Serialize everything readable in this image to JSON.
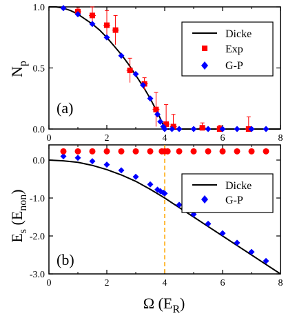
{
  "chart_data": [
    {
      "panel_label": "(a)",
      "type": "line+scatter",
      "ylabel_base": "N",
      "ylabel_sub": "p",
      "xlim": [
        0,
        8
      ],
      "ylim": [
        0,
        1
      ],
      "xticks": [
        "0",
        "2",
        "4",
        "6",
        "8"
      ],
      "yticks": [
        "0.0",
        "0.5",
        "1.0"
      ],
      "legend_position": "top-right",
      "legend": [
        {
          "label": "Dicke",
          "kind": "line",
          "color": "#000000"
        },
        {
          "label": "Exp",
          "kind": "square",
          "color": "#ff0000"
        },
        {
          "label": "G-P",
          "kind": "diamond",
          "color": "#0000ff"
        }
      ],
      "series": [
        {
          "name": "Dicke",
          "kind": "line",
          "color": "#000000",
          "x": [
            0,
            0.25,
            0.5,
            0.75,
            1.0,
            1.25,
            1.5,
            1.75,
            2.0,
            2.25,
            2.5,
            2.75,
            3.0,
            3.25,
            3.5,
            3.65,
            3.8,
            3.9,
            3.97,
            4.0,
            8.0
          ],
          "y": [
            1.0,
            1.0,
            0.99,
            0.97,
            0.94,
            0.9,
            0.86,
            0.81,
            0.75,
            0.68,
            0.61,
            0.53,
            0.44,
            0.35,
            0.25,
            0.18,
            0.11,
            0.06,
            0.02,
            0.0,
            0.0
          ]
        },
        {
          "name": "Exp",
          "kind": "square",
          "color": "#ff0000",
          "x": [
            1.0,
            1.5,
            2.0,
            2.3,
            2.8,
            3.3,
            3.7,
            4.05,
            4.3,
            5.3,
            5.9,
            6.9
          ],
          "y": [
            0.96,
            0.93,
            0.85,
            0.81,
            0.48,
            0.37,
            0.16,
            0.04,
            0.02,
            0.01,
            0.0,
            0.0
          ],
          "err": [
            0.03,
            0.07,
            0.12,
            0.12,
            0.1,
            0.05,
            0.14,
            0.16,
            0.1,
            0.04,
            0.03,
            0.1
          ]
        },
        {
          "name": "G-P",
          "kind": "diamond",
          "color": "#0000ff",
          "x": [
            0.5,
            1.0,
            1.5,
            2.0,
            2.5,
            3.0,
            3.25,
            3.5,
            3.75,
            3.85,
            3.95,
            4.0,
            4.25,
            4.5,
            5.0,
            5.5,
            6.0,
            6.5,
            7.0,
            7.5
          ],
          "y": [
            0.99,
            0.94,
            0.86,
            0.75,
            0.6,
            0.45,
            0.36,
            0.25,
            0.12,
            0.06,
            0.02,
            0.0,
            0.0,
            0.0,
            0.0,
            0.0,
            0.0,
            0.0,
            0.0,
            0.0
          ]
        }
      ]
    },
    {
      "panel_label": "(b)",
      "type": "line+scatter",
      "ylabel_base": "E",
      "ylabel_sub": "s",
      "ylabel_paren_base": "E",
      "ylabel_paren_sub": "non",
      "xlabel_base": "Ω (E",
      "xlabel_sub": "R",
      "xlabel_close": ")",
      "xlim": [
        0,
        8
      ],
      "ylim": [
        -3.0,
        0.4
      ],
      "xticks": [
        "0",
        "2",
        "4",
        "6",
        "8"
      ],
      "yticks": [
        "0.0",
        "-1.0",
        "-2.0",
        "-3.0"
      ],
      "ytick_values": [
        0,
        -1,
        -2,
        -3
      ],
      "vline_x": 4,
      "vline_color": "#ffa500",
      "legend_position": "right",
      "legend": [
        {
          "label": "Dicke",
          "kind": "line",
          "color": "#000000"
        },
        {
          "label": "G-P",
          "kind": "diamond",
          "color": "#0000ff"
        }
      ],
      "series": [
        {
          "name": "Dicke",
          "kind": "line",
          "color": "#000000",
          "x": [
            0,
            0.5,
            1.0,
            1.5,
            2.0,
            2.5,
            3.0,
            3.5,
            4.0,
            4.5,
            5.0,
            5.5,
            6.0,
            6.5,
            7.0,
            7.5,
            8.0
          ],
          "y": [
            0.0,
            -0.02,
            -0.06,
            -0.14,
            -0.25,
            -0.39,
            -0.56,
            -0.77,
            -1.0,
            -1.25,
            -1.5,
            -1.75,
            -2.0,
            -2.25,
            -2.5,
            -2.75,
            -3.0
          ]
        },
        {
          "name": "G-P",
          "kind": "diamond",
          "color": "#0000ff",
          "x": [
            0.5,
            1.0,
            1.5,
            2.0,
            2.5,
            3.0,
            3.5,
            3.75,
            3.85,
            3.95,
            4.0,
            4.5,
            5.0,
            5.5,
            6.0,
            6.5,
            7.0,
            7.5
          ],
          "y": [
            0.1,
            0.06,
            -0.03,
            -0.12,
            -0.27,
            -0.44,
            -0.64,
            -0.78,
            -0.82,
            -0.86,
            -0.88,
            -1.18,
            -1.43,
            -1.68,
            -1.93,
            -2.18,
            -2.42,
            -2.66
          ]
        },
        {
          "name": "red-dots",
          "kind": "circle",
          "color": "#ff0000",
          "x": [
            0.5,
            1.0,
            1.5,
            2.0,
            2.5,
            3.0,
            3.5,
            3.9,
            4.0,
            4.1,
            4.5,
            5.0,
            5.5,
            6.0,
            6.5,
            7.0,
            7.5
          ],
          "y": [
            0.23,
            0.23,
            0.23,
            0.23,
            0.23,
            0.23,
            0.23,
            0.23,
            0.23,
            0.23,
            0.23,
            0.23,
            0.23,
            0.23,
            0.23,
            0.23,
            0.23
          ]
        }
      ]
    }
  ]
}
